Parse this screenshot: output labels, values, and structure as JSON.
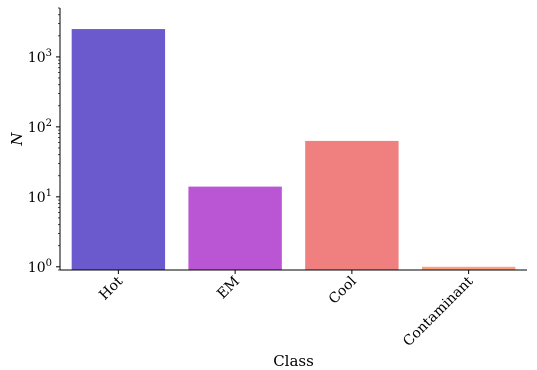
{
  "chart_data": {
    "type": "bar",
    "categories": [
      "Hot",
      "EM",
      "Cool",
      "Contaminant"
    ],
    "values": [
      2500,
      14,
      63,
      1
    ],
    "colors": [
      "#6a5acd",
      "#ba55d3",
      "#f08080",
      "#ffa07a"
    ],
    "xlabel": "Class",
    "ylabel": "N",
    "yscale": "log",
    "ylim": [
      0.9,
      5000
    ],
    "yticks": [
      {
        "base": "10",
        "exp": "0",
        "value": 1
      },
      {
        "base": "10",
        "exp": "1",
        "value": 10
      },
      {
        "base": "10",
        "exp": "2",
        "value": 100
      },
      {
        "base": "10",
        "exp": "3",
        "value": 1000
      }
    ],
    "grid": false,
    "legend": "none"
  }
}
